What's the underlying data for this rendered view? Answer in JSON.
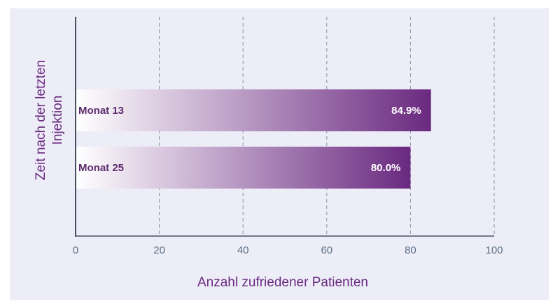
{
  "chart_data": {
    "type": "bar",
    "orientation": "horizontal",
    "categories": [
      "Monat 13",
      "Monat 25"
    ],
    "values": [
      84.9,
      80.0
    ],
    "value_labels": [
      "84.9%",
      "80.0%"
    ],
    "xlabel": "Anzahl zufriedener Patienten",
    "ylabel_lines": [
      "Zeit nach der letzten",
      "Injektion"
    ],
    "xlim": [
      0,
      100
    ],
    "xticks": [
      0,
      20,
      40,
      60,
      80,
      100
    ],
    "grid": "vertical dashed",
    "colors": {
      "background": "#ecedf6",
      "bar_start": "#ffffff",
      "bar_end": "#6a2980",
      "grid": "#8a8fa6",
      "axis": "#4a4f62",
      "tick_text": "#5b6f85",
      "title_text": "#6b2b82"
    }
  }
}
